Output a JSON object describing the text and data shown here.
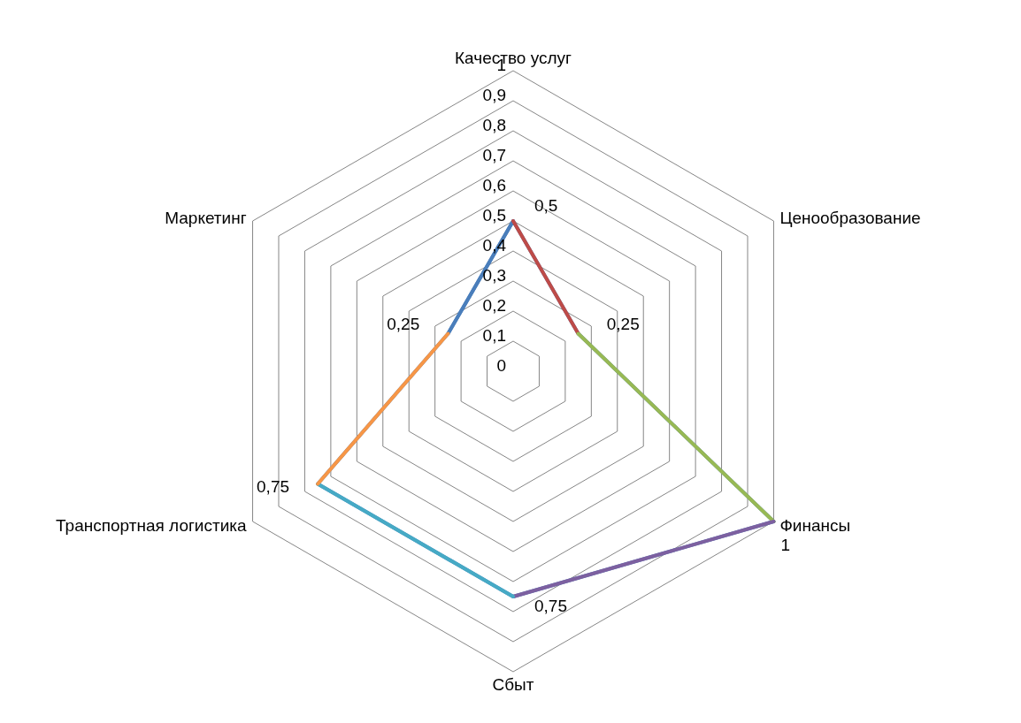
{
  "chart_data": {
    "type": "radar",
    "categories": [
      "Качество услуг",
      "Ценообразование",
      "Финансы",
      "Сбыт",
      "Транспортная логистика",
      "Маркетинг"
    ],
    "series": [
      {
        "values": [
          0.5,
          0.25,
          1,
          0.75,
          0.75,
          0.25
        ],
        "colors": [
          "#4a7ebb",
          "#be4b48",
          "#98b954",
          "#7d60a0",
          "#46aac5",
          "#f79646"
        ],
        "value_labels": [
          "0,5",
          "0,25",
          "1",
          "0,75",
          "0,75",
          "0,25"
        ]
      }
    ],
    "ylim": [
      0,
      1
    ],
    "yticks": [
      0,
      {
        "value": 0.1,
        "label": "0,1"
      },
      {
        "value": 0.2,
        "label": "0,2"
      },
      {
        "value": 0.3,
        "label": "0,3"
      },
      {
        "value": 0.4,
        "label": "0,4"
      },
      {
        "value": 0.5,
        "label": "0,5"
      },
      {
        "value": 0.6,
        "label": "0,6"
      },
      {
        "value": 0.7,
        "label": "0,7"
      },
      {
        "value": 0.8,
        "label": "0,8"
      },
      {
        "value": 0.9,
        "label": "0,9"
      },
      1
    ],
    "grid": true
  }
}
